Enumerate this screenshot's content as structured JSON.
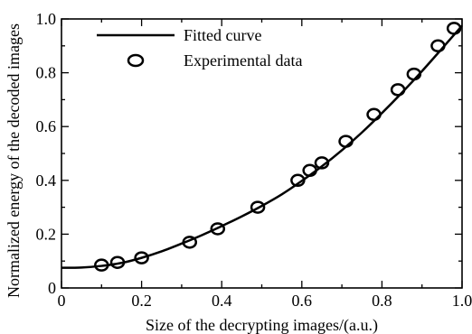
{
  "chart_data": {
    "type": "scatter",
    "title": "",
    "xlabel": "Size of the decrypting images/(a.u.)",
    "ylabel": "Normalized energy of the decoded images",
    "xlim": [
      0,
      1.0
    ],
    "ylim": [
      0,
      1.0
    ],
    "x_ticks": [
      0,
      0.2,
      0.4,
      0.6,
      0.8,
      1.0
    ],
    "x_tick_labels": [
      "0",
      "0.2",
      "0.4",
      "0.6",
      "0.8",
      "1.0"
    ],
    "y_ticks": [
      0,
      0.2,
      0.4,
      0.6,
      0.8,
      1.0
    ],
    "y_tick_labels": [
      "0",
      "0.2",
      "0.4",
      "0.6",
      "0.8",
      "1.0"
    ],
    "grid": false,
    "legend_position": "top-left",
    "series": [
      {
        "name": "Fitted curve",
        "kind": "line",
        "x": [
          0.0,
          0.05,
          0.1,
          0.15,
          0.2,
          0.25,
          0.3,
          0.35,
          0.4,
          0.45,
          0.5,
          0.55,
          0.6,
          0.65,
          0.7,
          0.75,
          0.8,
          0.85,
          0.9,
          0.95,
          1.0
        ],
        "y": [
          0.075,
          0.076,
          0.082,
          0.093,
          0.112,
          0.136,
          0.165,
          0.196,
          0.23,
          0.266,
          0.305,
          0.348,
          0.398,
          0.452,
          0.512,
          0.578,
          0.65,
          0.726,
          0.806,
          0.89,
          0.975
        ]
      },
      {
        "name": "Experimental data",
        "kind": "scatter",
        "marker": "circle",
        "x": [
          0.1,
          0.14,
          0.2,
          0.32,
          0.39,
          0.49,
          0.59,
          0.62,
          0.65,
          0.71,
          0.78,
          0.84,
          0.88,
          0.94,
          0.98
        ],
        "y": [
          0.085,
          0.095,
          0.112,
          0.17,
          0.22,
          0.3,
          0.4,
          0.437,
          0.465,
          0.545,
          0.645,
          0.737,
          0.795,
          0.9,
          0.965
        ]
      }
    ]
  }
}
